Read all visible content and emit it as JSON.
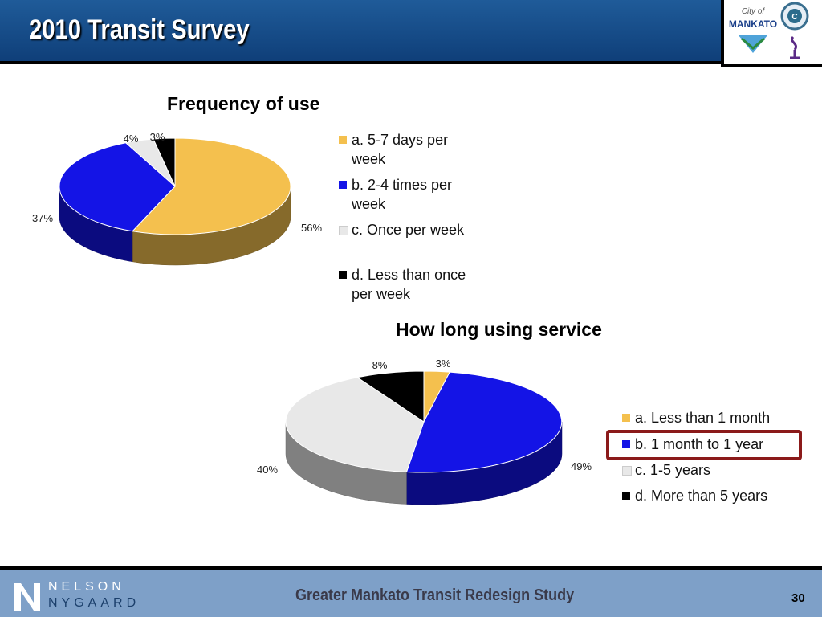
{
  "slide": {
    "title": "2010 Transit Survey",
    "footer_text": "Greater Mankato Transit Redesign Study",
    "page_number": "30",
    "brand_top": "NELSON",
    "brand_bottom": "NYGAARD"
  },
  "logos": {
    "city_text_line1": "City of",
    "city_text_line2": "MANKATO"
  },
  "chart_data": [
    {
      "type": "pie",
      "title": "Frequency of use",
      "categories": [
        "a. 5-7 days per week",
        "b. 2-4 times per week",
        "c. Once per week",
        "d. Less than once per week"
      ],
      "values": [
        56,
        37,
        4,
        3
      ],
      "data_labels": [
        "56%",
        "37%",
        "4%",
        "3%"
      ],
      "colors": [
        "#f4c04e",
        "#1414e6",
        "#e8e8e8",
        "#000000"
      ],
      "legend_placement": "right",
      "three_d": true
    },
    {
      "type": "pie",
      "title": "How long using service",
      "categories": [
        "a. Less than 1 month",
        "b. 1 month to 1 year",
        "c. 1-5 years",
        "d. More than 5 years"
      ],
      "values": [
        3,
        49,
        40,
        8
      ],
      "data_labels": [
        "3%",
        "49%",
        "40%",
        "8%"
      ],
      "colors": [
        "#f4c04e",
        "#1414e6",
        "#e8e8e8",
        "#000000"
      ],
      "legend_placement": "right",
      "three_d": true,
      "highlighted_legend_item": "b. 1 month to 1 year"
    }
  ]
}
